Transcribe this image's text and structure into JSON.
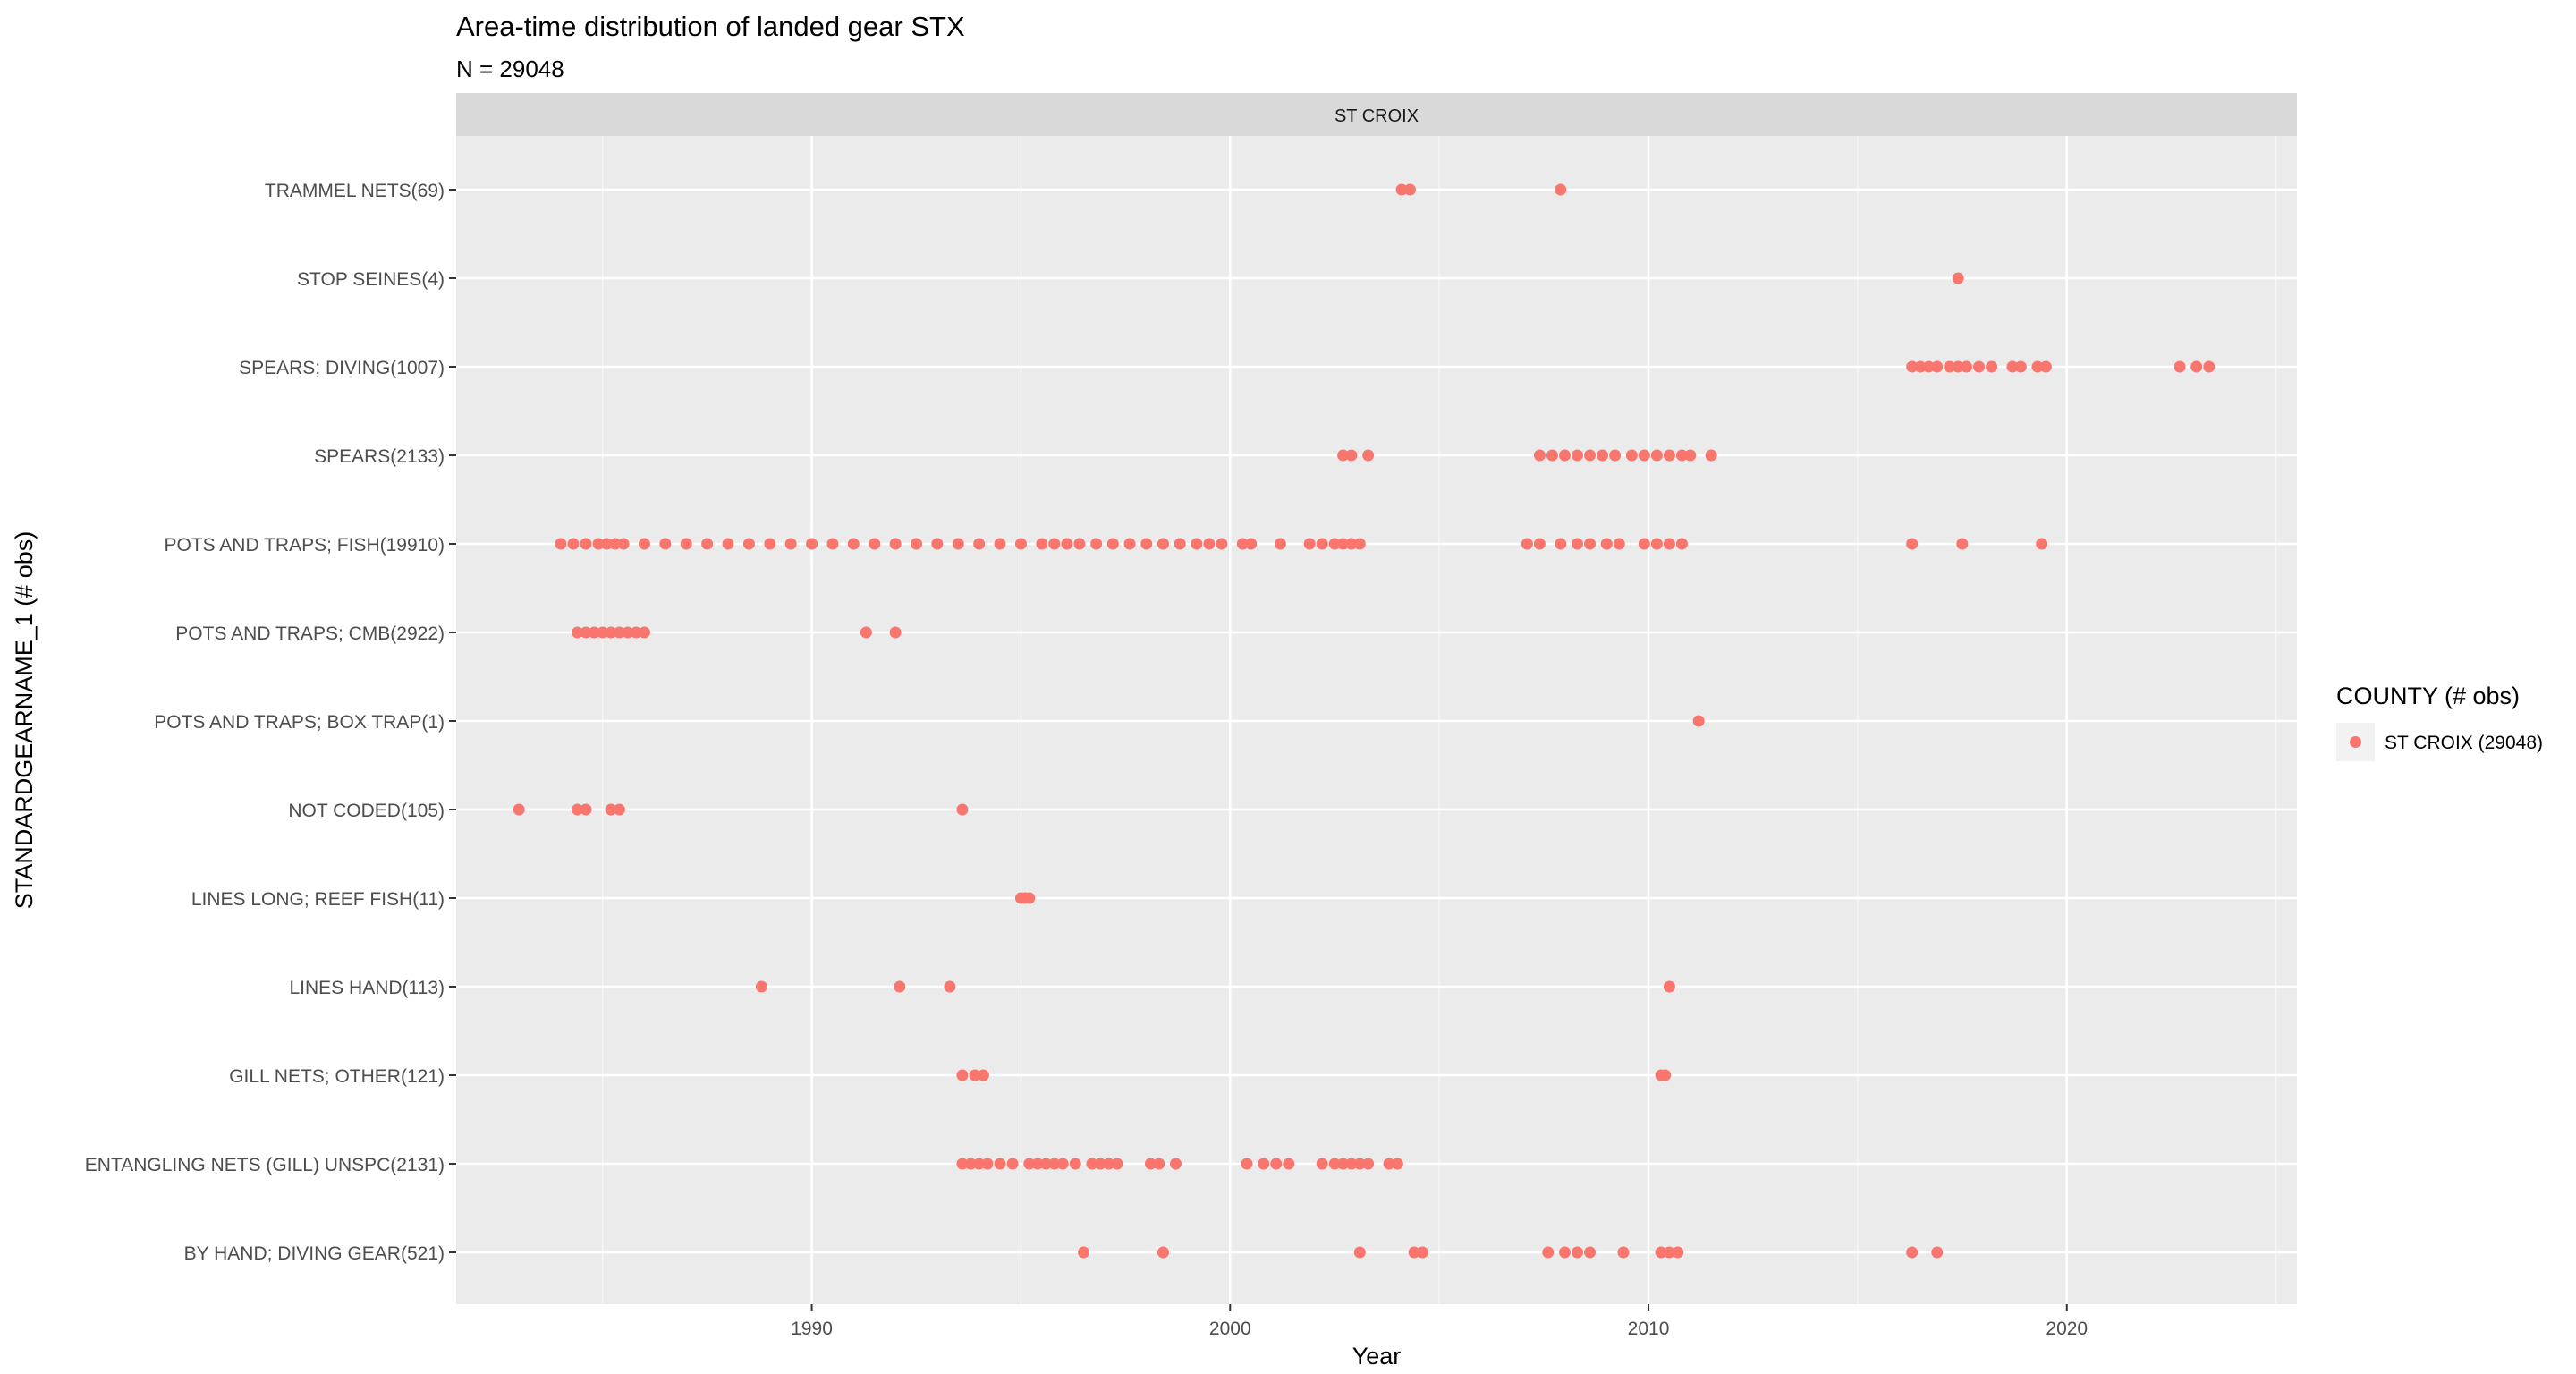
{
  "chart_data": {
    "type": "scatter",
    "title": "Area-time distribution of landed gear STX",
    "subtitle": "N =  29048",
    "facet_label": "ST CROIX",
    "xlabel": "Year",
    "ylabel": "STANDARDGEARNAME_1 (# obs)",
    "xlim": [
      1981.5,
      2025.5
    ],
    "x_ticks": [
      1990,
      2000,
      2010,
      2020
    ],
    "x_tick_labels": [
      "1990",
      "2000",
      "2010",
      "2020"
    ],
    "x_minor_ticks": [
      1985,
      1995,
      2005,
      2015,
      2025
    ],
    "grid": true,
    "legend": {
      "title": "COUNTY (# obs)",
      "position": "right",
      "entries": [
        {
          "label": "ST CROIX (29048)",
          "color": "#F8766D"
        }
      ]
    },
    "point_color": "#F8766D",
    "categories": [
      "BY HAND; DIVING GEAR(521)",
      "ENTANGLING NETS (GILL) UNSPC(2131)",
      "GILL NETS; OTHER(121)",
      "LINES HAND(113)",
      "LINES LONG; REEF FISH(11)",
      "NOT CODED(105)",
      "POTS AND TRAPS; BOX TRAP(1)",
      "POTS AND TRAPS; CMB(2922)",
      "POTS AND TRAPS; FISH(19910)",
      "SPEARS(2133)",
      "SPEARS; DIVING(1007)",
      "STOP SEINES(4)",
      "TRAMMEL NETS(69)"
    ],
    "series": [
      {
        "category": "BY HAND; DIVING GEAR(521)",
        "x": [
          1996.5,
          1998.4,
          2003.1,
          2004.4,
          2004.6,
          2007.6,
          2008.0,
          2008.3,
          2008.6,
          2009.4,
          2010.3,
          2010.5,
          2010.7,
          2016.3,
          2016.9
        ]
      },
      {
        "category": "ENTANGLING NETS (GILL) UNSPC(2131)",
        "x": [
          1993.6,
          1993.8,
          1994.0,
          1994.2,
          1994.5,
          1994.8,
          1995.2,
          1995.4,
          1995.6,
          1995.8,
          1996.0,
          1996.3,
          1996.7,
          1996.9,
          1997.1,
          1997.3,
          1998.1,
          1998.3,
          1998.7,
          2000.4,
          2000.8,
          2001.1,
          2001.4,
          2002.2,
          2002.5,
          2002.7,
          2002.9,
          2003.1,
          2003.3,
          2003.8,
          2004.0
        ]
      },
      {
        "category": "GILL NETS; OTHER(121)",
        "x": [
          1993.6,
          1993.9,
          1994.1,
          2010.3,
          2010.4
        ]
      },
      {
        "category": "LINES HAND(113)",
        "x": [
          1988.8,
          1992.1,
          1993.3,
          2010.5
        ]
      },
      {
        "category": "LINES LONG; REEF FISH(11)",
        "x": [
          1995.0,
          1995.1,
          1995.2
        ]
      },
      {
        "category": "NOT CODED(105)",
        "x": [
          1983.0,
          1984.4,
          1984.6,
          1985.2,
          1985.4,
          1993.6
        ]
      },
      {
        "category": "POTS AND TRAPS; BOX TRAP(1)",
        "x": [
          2011.2
        ]
      },
      {
        "category": "POTS AND TRAPS; CMB(2922)",
        "x": [
          1984.4,
          1984.6,
          1984.8,
          1985.0,
          1985.2,
          1985.4,
          1985.6,
          1985.8,
          1986.0,
          1991.3,
          1992.0
        ]
      },
      {
        "category": "POTS AND TRAPS; FISH(19910)",
        "x": [
          1984.0,
          1984.3,
          1984.6,
          1984.9,
          1985.1,
          1985.3,
          1985.5,
          1986.0,
          1986.5,
          1987.0,
          1987.5,
          1988.0,
          1988.5,
          1989.0,
          1989.5,
          1990.0,
          1990.5,
          1991.0,
          1991.5,
          1992.0,
          1992.5,
          1993.0,
          1993.5,
          1994.0,
          1994.5,
          1995.0,
          1995.5,
          1995.8,
          1996.1,
          1996.4,
          1996.8,
          1997.2,
          1997.6,
          1998.0,
          1998.4,
          1998.8,
          1999.2,
          1999.5,
          1999.8,
          2000.3,
          2000.5,
          2001.2,
          2001.9,
          2002.2,
          2002.5,
          2002.7,
          2002.9,
          2003.1,
          2007.1,
          2007.4,
          2007.9,
          2008.3,
          2008.6,
          2009.0,
          2009.3,
          2009.9,
          2010.2,
          2010.5,
          2010.8,
          2016.3,
          2017.5,
          2019.4
        ]
      },
      {
        "category": "SPEARS(2133)",
        "x": [
          2002.7,
          2002.9,
          2003.3,
          2007.4,
          2007.7,
          2008.0,
          2008.3,
          2008.6,
          2008.9,
          2009.2,
          2009.6,
          2009.9,
          2010.2,
          2010.5,
          2010.8,
          2011.0,
          2011.5
        ]
      },
      {
        "category": "SPEARS; DIVING(1007)",
        "x": [
          2016.3,
          2016.5,
          2016.7,
          2016.9,
          2017.2,
          2017.4,
          2017.6,
          2017.9,
          2018.2,
          2018.7,
          2018.9,
          2019.3,
          2019.5,
          2022.7,
          2023.1,
          2023.4
        ]
      },
      {
        "category": "STOP SEINES(4)",
        "x": [
          2017.4
        ]
      },
      {
        "category": "TRAMMEL NETS(69)",
        "x": [
          2004.1,
          2004.3,
          2007.9
        ]
      }
    ]
  }
}
